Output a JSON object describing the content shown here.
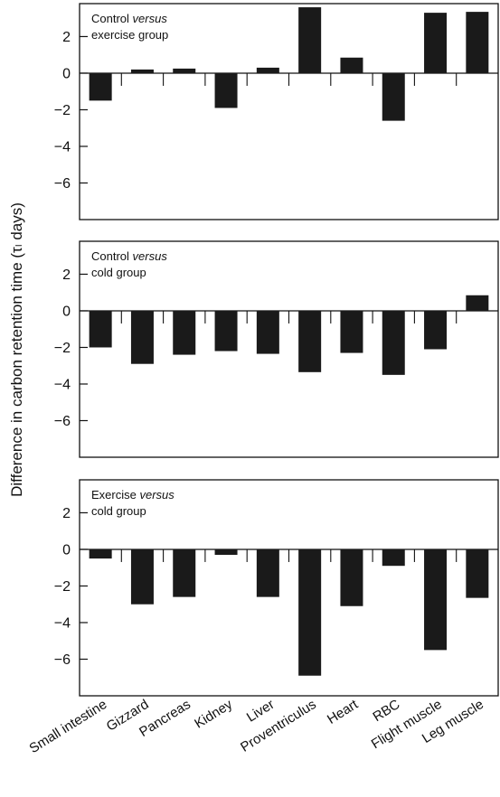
{
  "chart_data": {
    "type": "bar",
    "ylabel": "Difference in carbon retention time (τₗ days)",
    "categories": [
      "Small intestine",
      "Gizzard",
      "Pancreas",
      "Kidney",
      "Liver",
      "Proventriculus",
      "Heart",
      "RBC",
      "Flight muscle",
      "Leg muscle"
    ],
    "yticks": [
      2,
      0,
      -2,
      -4,
      -6
    ],
    "bar_color": "#1a1a1a",
    "panels": [
      {
        "label_prefix": "Control ",
        "label_italic": "versus",
        "label_line2": "exercise group",
        "ylim": [
          -8.0,
          3.8
        ],
        "values": [
          -1.5,
          0.2,
          0.25,
          -1.9,
          0.3,
          3.6,
          0.85,
          -2.6,
          3.3,
          3.35
        ]
      },
      {
        "label_prefix": "Control ",
        "label_italic": "versus",
        "label_line2": "cold group",
        "ylim": [
          -8.0,
          3.8
        ],
        "values": [
          -2.0,
          -2.9,
          -2.4,
          -2.2,
          -2.35,
          -3.35,
          -2.3,
          -3.5,
          -2.1,
          0.85
        ]
      },
      {
        "label_prefix": "Exercise ",
        "label_italic": "versus",
        "label_line2": "cold group",
        "ylim": [
          -8.0,
          3.8
        ],
        "values": [
          -0.5,
          -3.0,
          -2.6,
          -0.3,
          -2.6,
          -6.9,
          -3.1,
          -0.9,
          -5.5,
          -2.65
        ]
      }
    ]
  }
}
